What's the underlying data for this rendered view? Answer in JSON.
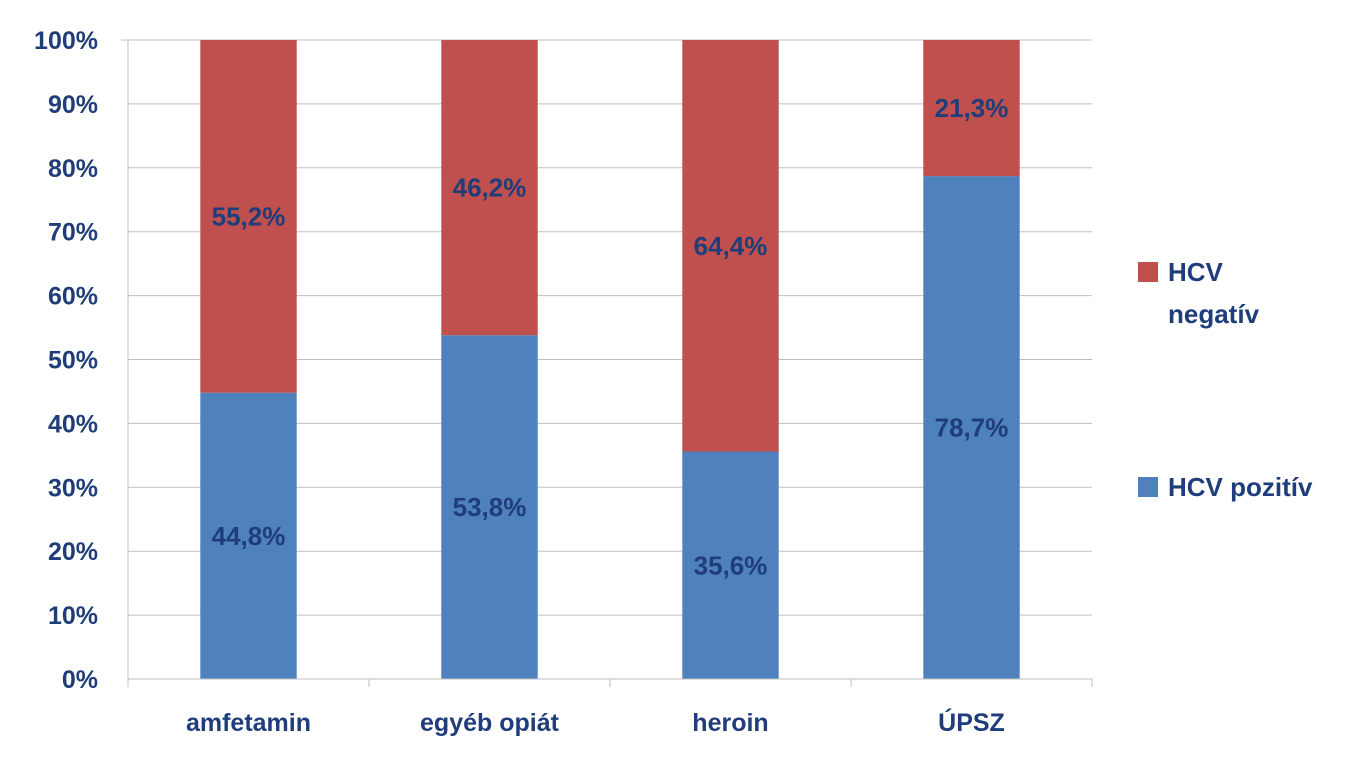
{
  "chart_data": {
    "type": "bar",
    "stacked": true,
    "categories": [
      "amfetamin",
      "egyéb opiát",
      "heroin",
      "ÚPSZ"
    ],
    "series": [
      {
        "name": "HCV pozitív",
        "values": [
          44.8,
          53.8,
          35.6,
          78.7
        ],
        "labels": [
          "44,8%",
          "53,8%",
          "35,6%",
          "78,7%"
        ],
        "color": "#4F81BD"
      },
      {
        "name": "HCV negatív",
        "values": [
          55.2,
          46.2,
          64.4,
          21.3
        ],
        "labels": [
          "55,2%",
          "46,2%",
          "64,4%",
          "21,3%"
        ],
        "color": "#C0504D"
      }
    ],
    "ylim": [
      0,
      100
    ],
    "yticks": [
      "0%",
      "10%",
      "20%",
      "30%",
      "40%",
      "50%",
      "60%",
      "70%",
      "80%",
      "90%",
      "100%"
    ],
    "title": "",
    "xlabel": "",
    "ylabel": "",
    "grid": true,
    "legend": "right",
    "label_color": "#1F3D7A",
    "grid_color": "#BFBFBF"
  }
}
